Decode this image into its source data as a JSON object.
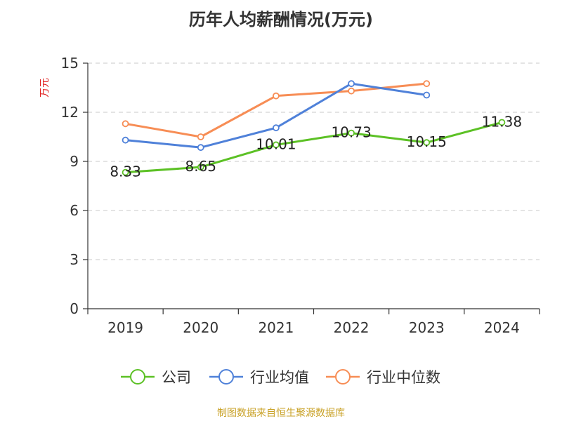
{
  "chart_data": {
    "type": "line",
    "title": "历年人均薪酬情况(万元)",
    "ylabel": "万元",
    "xlabel": "",
    "categories": [
      "2019",
      "2020",
      "2021",
      "2022",
      "2023",
      "2024"
    ],
    "ylim": [
      0,
      15
    ],
    "yticks": [
      0,
      3,
      6,
      9,
      12,
      15
    ],
    "grid": true,
    "legend_position": "bottom",
    "series": [
      {
        "name": "公司",
        "color": "#5cc125",
        "values": [
          8.33,
          8.65,
          10.01,
          10.73,
          10.15,
          11.38
        ],
        "show_labels": true
      },
      {
        "name": "行业均值",
        "color": "#4f81d9",
        "values": [
          10.3,
          9.85,
          11.05,
          13.75,
          13.05,
          null
        ],
        "show_labels": false
      },
      {
        "name": "行业中位数",
        "color": "#f78d55",
        "values": [
          11.3,
          10.5,
          13.0,
          13.3,
          13.75,
          null
        ],
        "show_labels": false
      }
    ]
  },
  "source": "制图数据来自恒生聚源数据库"
}
